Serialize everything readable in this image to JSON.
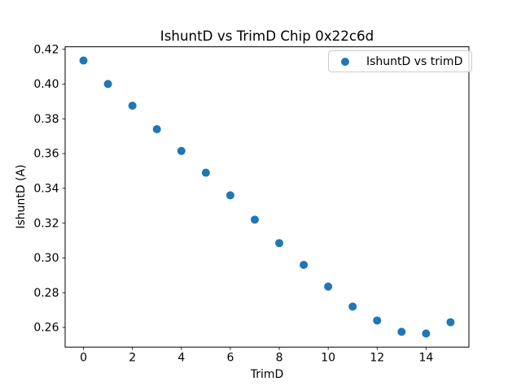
{
  "chart_data": {
    "type": "scatter",
    "title": "IshuntD vs TrimD Chip 0x22c6d",
    "xlabel": "TrimD",
    "ylabel": "IshuntD (A)",
    "legend": {
      "label": "IshuntD vs trimD",
      "position": "upper right",
      "border_color": "#cccccc"
    },
    "x": [
      0,
      1,
      2,
      3,
      4,
      5,
      6,
      7,
      8,
      9,
      10,
      11,
      12,
      13,
      14,
      15
    ],
    "y": [
      0.4135,
      0.4,
      0.3875,
      0.374,
      0.3615,
      0.349,
      0.336,
      0.322,
      0.3085,
      0.296,
      0.2835,
      0.272,
      0.264,
      0.2575,
      0.2565,
      0.263
    ],
    "xticks": [
      0,
      2,
      4,
      6,
      8,
      10,
      12,
      14
    ],
    "yticks": [
      0.26,
      0.28,
      0.3,
      0.32,
      0.34,
      0.36,
      0.38,
      0.4,
      0.42
    ],
    "xlim": [
      -0.75,
      15.75
    ],
    "ylim": [
      0.2487,
      0.4214
    ],
    "grid": false,
    "marker": {
      "color": "#1f77b4",
      "radius_px": 5
    },
    "axes_color": "#000000",
    "background": "#ffffff"
  }
}
